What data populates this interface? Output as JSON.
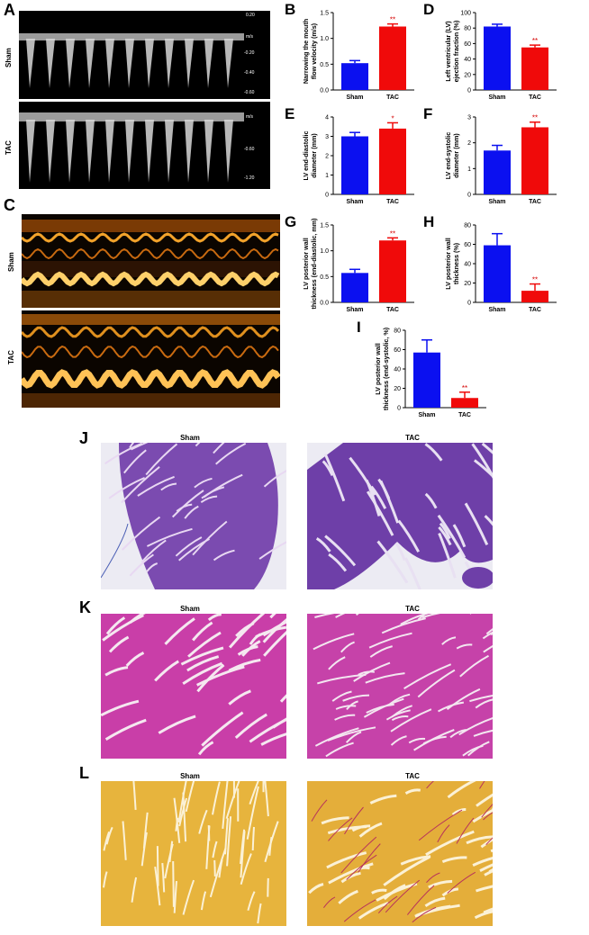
{
  "colors": {
    "sham": "#0b10f0",
    "tac": "#f00a0a",
    "star": "#d40000"
  },
  "panels": {
    "A": {
      "letter": "A",
      "rows": [
        {
          "label": "Sham",
          "scale": [
            "0.20",
            "m/s",
            "-0.20",
            "-0.40",
            "-0.60"
          ]
        },
        {
          "label": "TAC",
          "scale": [
            "m/s",
            "-0.60",
            "-1.20"
          ]
        }
      ]
    },
    "C": {
      "letter": "C",
      "rows": [
        {
          "label": "Sham"
        },
        {
          "label": "TAC"
        }
      ]
    },
    "J": {
      "letter": "J",
      "titles": [
        "Sham",
        "TAC"
      ]
    },
    "K": {
      "letter": "K",
      "titles": [
        "Sham",
        "TAC"
      ]
    },
    "L": {
      "letter": "L",
      "titles": [
        "Sham",
        "TAC"
      ]
    }
  },
  "chart_data": [
    {
      "id": "B",
      "letter": "B",
      "type": "bar",
      "categories": [
        "Sham",
        "TAC"
      ],
      "values": [
        0.52,
        1.23
      ],
      "errors": [
        0.05,
        0.05
      ],
      "ylabel": "Narrowing the mouth flow velocity (m/s)",
      "ylim": [
        0,
        1.5
      ],
      "ticks": [
        "0.0",
        "0.5",
        "1.0",
        "1.5"
      ],
      "stars": [
        "",
        "**"
      ]
    },
    {
      "id": "D",
      "letter": "D",
      "type": "bar",
      "categories": [
        "Sham",
        "TAC"
      ],
      "values": [
        82,
        55
      ],
      "errors": [
        3,
        3
      ],
      "ylabel": "Left ventricular (LV) ejection fraction (%)",
      "ylim": [
        0,
        100
      ],
      "ticks": [
        "0",
        "20",
        "40",
        "60",
        "80",
        "100"
      ],
      "stars": [
        "",
        "**"
      ]
    },
    {
      "id": "E",
      "letter": "E",
      "type": "bar",
      "categories": [
        "Sham",
        "TAC"
      ],
      "values": [
        3.0,
        3.4
      ],
      "errors": [
        0.2,
        0.3
      ],
      "ylabel": "LV end-diastolic diameter (mm)",
      "ylim": [
        0,
        4
      ],
      "ticks": [
        "0",
        "1",
        "2",
        "3",
        "4"
      ],
      "stars": [
        "",
        "*"
      ]
    },
    {
      "id": "F",
      "letter": "F",
      "type": "bar",
      "categories": [
        "Sham",
        "TAC"
      ],
      "values": [
        1.7,
        2.6
      ],
      "errors": [
        0.2,
        0.2
      ],
      "ylabel": "LV end-systolic diameter (mm)",
      "ylim": [
        0,
        3
      ],
      "ticks": [
        "0",
        "1",
        "2",
        "3"
      ],
      "stars": [
        "",
        "**"
      ]
    },
    {
      "id": "G",
      "letter": "G",
      "type": "bar",
      "categories": [
        "Sham",
        "TAC"
      ],
      "values": [
        0.57,
        1.2
      ],
      "errors": [
        0.07,
        0.05
      ],
      "ylabel": "LV posterior wall thickness (end-diastolic, mm)",
      "ylim": [
        0,
        1.5
      ],
      "ticks": [
        "0.0",
        "0.5",
        "1.0",
        "1.5"
      ],
      "stars": [
        "",
        "**"
      ]
    },
    {
      "id": "H",
      "letter": "H",
      "type": "bar",
      "categories": [
        "Sham",
        "TAC"
      ],
      "values": [
        59,
        12
      ],
      "errors": [
        12,
        7
      ],
      "ylabel": "LV posterior wall thickness (%)",
      "ylim": [
        0,
        80
      ],
      "ticks": [
        "0",
        "20",
        "40",
        "60",
        "80"
      ],
      "stars": [
        "",
        "**"
      ]
    },
    {
      "id": "I",
      "letter": "I",
      "type": "bar",
      "categories": [
        "Sham",
        "TAC"
      ],
      "values": [
        57,
        10
      ],
      "errors": [
        13,
        6
      ],
      "ylabel": "LV posterior wall thickness (end-systolic, %)",
      "ylim": [
        0,
        80
      ],
      "ticks": [
        "0",
        "20",
        "40",
        "60",
        "80"
      ],
      "stars": [
        "",
        "**"
      ]
    }
  ]
}
